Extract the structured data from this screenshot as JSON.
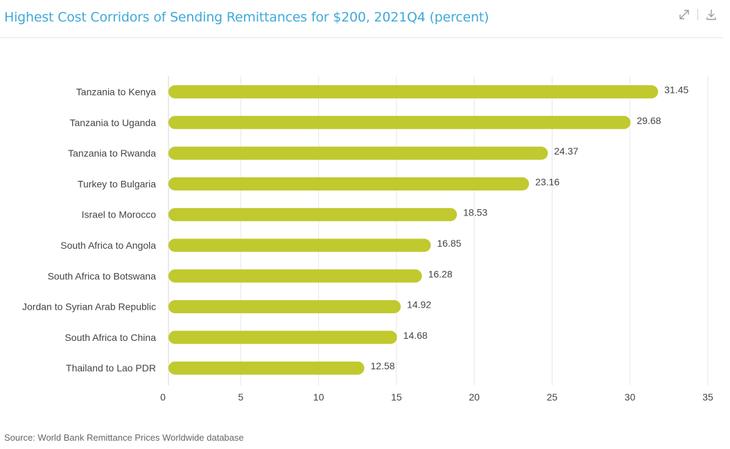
{
  "header": {
    "title": "Highest Cost Corridors of Sending Remittances for $200, 2021Q4 (percent)",
    "expand_icon": "expand-icon",
    "download_icon": "download-icon"
  },
  "source": "Source: World Bank Remittance Prices Worldwide database",
  "colors": {
    "bar": "#c0c92e",
    "title": "#3fa9d8",
    "grid": "#e6e6e6"
  },
  "chart_data": {
    "type": "bar",
    "orientation": "horizontal",
    "title": "Highest Cost Corridors of Sending Remittances for $200, 2021Q4 (percent)",
    "categories": [
      "Tanzania to Kenya",
      "Tanzania to Uganda",
      "Tanzania to Rwanda",
      "Turkey to Bulgaria",
      "Israel to Morocco",
      "South Africa to Angola",
      "South Africa to Botswana",
      "Jordan to Syrian Arab Republic",
      "South Africa to China",
      "Thailand to Lao PDR"
    ],
    "values": [
      31.45,
      29.68,
      24.37,
      23.16,
      18.53,
      16.85,
      16.28,
      14.92,
      14.68,
      12.58
    ],
    "xlim": [
      0,
      35
    ],
    "xticks": [
      0,
      5,
      10,
      15,
      20,
      25,
      30,
      35
    ],
    "grid": "vertical",
    "legend": "none",
    "data_labels": true
  }
}
